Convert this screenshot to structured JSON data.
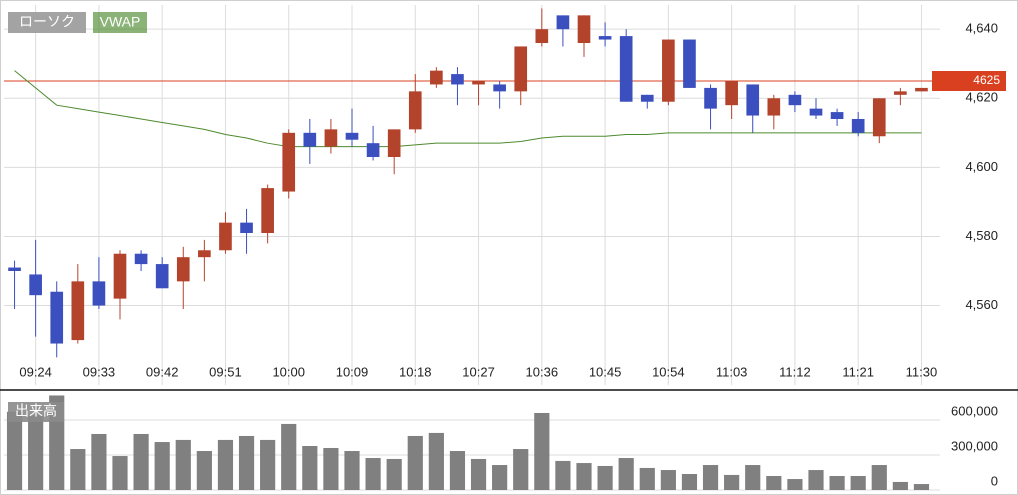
{
  "chart_data": [
    {
      "type": "candlestick",
      "name": "ローソク",
      "categories": [
        null,
        "09:24",
        null,
        null,
        "09:33",
        null,
        null,
        "09:42",
        null,
        null,
        "09:51",
        null,
        null,
        "10:00",
        null,
        null,
        "10:09",
        null,
        null,
        "10:18",
        null,
        null,
        "10:27",
        null,
        null,
        "10:36",
        null,
        null,
        "10:45",
        null,
        null,
        "10:54",
        null,
        null,
        "11:03",
        null,
        null,
        "11:12",
        null,
        null,
        "11:21",
        null,
        null,
        "11:30"
      ],
      "open": [
        4571,
        4569,
        4564,
        4550,
        4567,
        4562,
        4575,
        4572,
        4567,
        4574,
        4576,
        4584,
        4581,
        4593,
        4610,
        4606,
        4610,
        4607,
        4603,
        4611,
        4624,
        4627,
        4624,
        4624,
        4622,
        4636,
        4644,
        4636,
        4638,
        4638,
        4621,
        4619,
        4637,
        4623,
        4618,
        4624,
        4615,
        4621,
        4617,
        4616,
        4614,
        4609,
        4621,
        4622
      ],
      "high": [
        4573,
        4579,
        4567,
        4572,
        4574,
        4576,
        4576,
        4574,
        4577,
        4579,
        4587,
        4588,
        4595,
        4611,
        4614,
        4614,
        4617,
        4612,
        4611,
        4627,
        4629,
        4629,
        4625,
        4625,
        4635,
        4646,
        4644,
        4644,
        4642,
        4640,
        4621,
        4637,
        4637,
        4624,
        4625,
        4624,
        4621,
        4622,
        4620,
        4617,
        4616,
        4620,
        4623,
        4623
      ],
      "low": [
        4559,
        4551,
        4545,
        4549,
        4559,
        4556,
        4570,
        4565,
        4559,
        4567,
        4575,
        4575,
        4578,
        4591,
        4601,
        4604,
        4606,
        4602,
        4598,
        4610,
        4623,
        4618,
        4618,
        4617,
        4618,
        4635,
        4635,
        4632,
        4635,
        4619,
        4617,
        4618,
        4623,
        4611,
        4614,
        4610,
        4611,
        4616,
        4614,
        4612,
        4609,
        4607,
        4618,
        4622
      ],
      "close": [
        4570,
        4563,
        4549,
        4567,
        4560,
        4575,
        4572,
        4565,
        4574,
        4576,
        4584,
        4581,
        4594,
        4610,
        4606,
        4611,
        4608,
        4603,
        4611,
        4622,
        4628,
        4624,
        4625,
        4622,
        4635,
        4640,
        4640,
        4644,
        4637,
        4619,
        4619,
        4637,
        4623,
        4617,
        4625,
        4615,
        4620,
        4618,
        4615,
        4614,
        4610,
        4620,
        4622,
        4623
      ],
      "up_color": "#b4432c",
      "down_color": "#3b4fbf",
      "series": [
        {
          "name": "VWAP",
          "color": "#4d8a2e",
          "values": [
            4628,
            4623,
            4618,
            4617,
            4616,
            4615,
            4614,
            4613,
            4612,
            4611,
            4609.5,
            4608.5,
            4607,
            4606,
            4606,
            4606,
            4606,
            4606,
            4606,
            4606.5,
            4607,
            4607,
            4607,
            4607,
            4607.5,
            4608.5,
            4609,
            4609,
            4609,
            4609.5,
            4609.5,
            4610,
            4610,
            4610,
            4610,
            4610,
            4610,
            4610,
            4610,
            4610,
            4610,
            4610,
            4610,
            4610
          ]
        }
      ],
      "current_price": 4625,
      "current_color": "#d9401f",
      "ylim": [
        4537,
        4647
      ],
      "yticks": [
        {
          "value": 4560,
          "label": "4,560"
        },
        {
          "value": 4580,
          "label": "4,580"
        },
        {
          "value": 4600,
          "label": "4,600"
        },
        {
          "value": 4620,
          "label": "4,620"
        },
        {
          "value": 4640,
          "label": "4,640"
        }
      ],
      "grid": true
    },
    {
      "type": "bar",
      "name": "出来高",
      "color": "#808080",
      "values": [
        670000,
        640000,
        810000,
        351000,
        480000,
        291000,
        480000,
        411000,
        429000,
        334000,
        429000,
        463000,
        429000,
        566000,
        377000,
        360000,
        334000,
        274000,
        266000,
        463000,
        489000,
        334000,
        266000,
        214000,
        351000,
        660000,
        249000,
        231000,
        206000,
        274000,
        189000,
        171000,
        137000,
        214000,
        129000,
        214000,
        120000,
        94000,
        171000,
        120000,
        120000,
        214000,
        69000,
        51000
      ],
      "ylim": [
        0,
        814000
      ],
      "yticks": [
        0,
        {
          "value": 300000,
          "label": "300,000"
        },
        {
          "value": 600000,
          "label": "600,000"
        }
      ],
      "grid": true
    }
  ]
}
